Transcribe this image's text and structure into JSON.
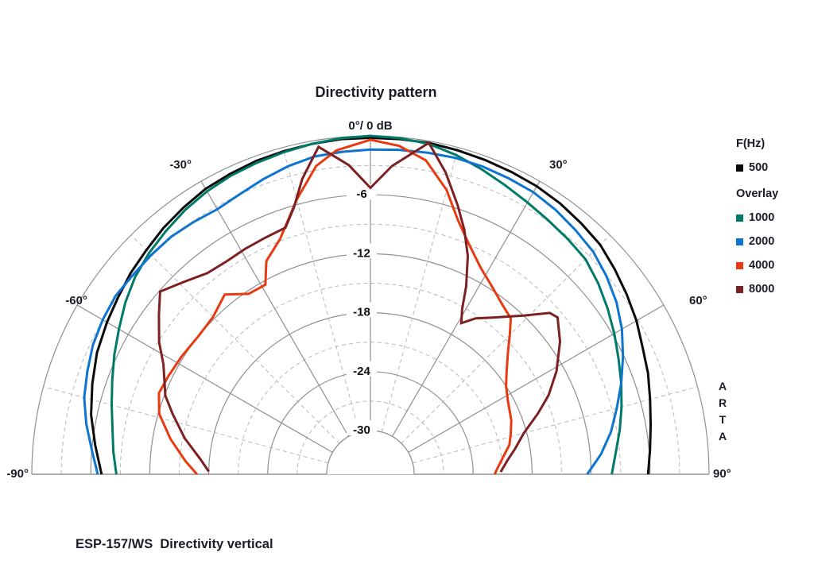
{
  "title": "Directivity pattern",
  "caption": "ESP-157/WS  Directivity vertical",
  "watermark": "ARTA",
  "legend": {
    "group1_heading": "F(Hz)",
    "group2_heading": "Overlay",
    "entries": [
      {
        "label": "500",
        "color": "#0a0a0a",
        "group": 1
      },
      {
        "label": "1000",
        "color": "#007a68",
        "group": 2
      },
      {
        "label": "2000",
        "color": "#0d74cf",
        "group": 2
      },
      {
        "label": "4000",
        "color": "#e83a10",
        "group": 2
      },
      {
        "label": "8000",
        "color": "#7c2022",
        "group": 2
      }
    ]
  },
  "chart_data": {
    "type": "line",
    "subtype": "polar-directivity-half",
    "apex_label": "0°/ 0 dB",
    "angle_ticks_solid": [
      0,
      -30,
      30,
      -60,
      60,
      -90,
      90
    ],
    "angle_ticks_dashed": [
      -15,
      15,
      -45,
      45,
      -75,
      75
    ],
    "angle_labels": [
      {
        "angle": 0,
        "text": "0°/ 0 dB"
      },
      {
        "angle": -30,
        "text": "-30°"
      },
      {
        "angle": 30,
        "text": "30°"
      },
      {
        "angle": -60,
        "text": "-60°"
      },
      {
        "angle": 60,
        "text": "60°"
      },
      {
        "angle": -90,
        "text": "-90°"
      },
      {
        "angle": 90,
        "text": "90°"
      }
    ],
    "db_rings_solid": [
      0,
      -6,
      -12,
      -18,
      -24,
      -30
    ],
    "db_rings_dashed": [
      -3,
      -9,
      -15,
      -21,
      -27
    ],
    "db_ring_labels": [
      {
        "db": -6,
        "text": "-6"
      },
      {
        "db": -12,
        "text": "-12"
      },
      {
        "db": -18,
        "text": "-18"
      },
      {
        "db": -24,
        "text": "-24"
      },
      {
        "db": -30,
        "text": "-30"
      }
    ],
    "db_min": -30,
    "grid_colors": {
      "solid": "#8f8f8f",
      "dashed": "#b8b8b8"
    },
    "series": [
      {
        "name": "500",
        "color": "#0a0a0a",
        "points": [
          [
            -90,
            -7.1
          ],
          [
            -84,
            -6.3
          ],
          [
            -78,
            -5.4
          ],
          [
            -72,
            -4.7
          ],
          [
            -66,
            -4.0
          ],
          [
            -60,
            -3.5
          ],
          [
            -55,
            -3.1
          ],
          [
            -50,
            -2.6
          ],
          [
            -45,
            -2.2
          ],
          [
            -40,
            -1.7
          ],
          [
            -35,
            -1.3
          ],
          [
            -30,
            -0.9
          ],
          [
            -25,
            -0.7
          ],
          [
            -20,
            -0.5
          ],
          [
            -15,
            -0.4
          ],
          [
            -10,
            -0.3
          ],
          [
            -5,
            -0.2
          ],
          [
            0,
            -0.2
          ],
          [
            5,
            -0.2
          ],
          [
            10,
            -0.2
          ],
          [
            15,
            -0.3
          ],
          [
            20,
            -0.4
          ],
          [
            25,
            -0.5
          ],
          [
            30,
            -0.6
          ],
          [
            35,
            -0.8
          ],
          [
            40,
            -1.1
          ],
          [
            45,
            -1.4
          ],
          [
            50,
            -2.0
          ],
          [
            55,
            -2.6
          ],
          [
            60,
            -3.2
          ],
          [
            65,
            -3.9
          ],
          [
            70,
            -4.4
          ],
          [
            75,
            -5.0
          ],
          [
            80,
            -5.5
          ],
          [
            85,
            -5.9
          ],
          [
            90,
            -6.2
          ]
        ]
      },
      {
        "name": "1000",
        "color": "#007a68",
        "points": [
          [
            -90,
            -8.6
          ],
          [
            -85,
            -8.2
          ],
          [
            -80,
            -7.8
          ],
          [
            -75,
            -7.2
          ],
          [
            -70,
            -6.5
          ],
          [
            -65,
            -5.7
          ],
          [
            -60,
            -4.9
          ],
          [
            -55,
            -4.0
          ],
          [
            -50,
            -3.2
          ],
          [
            -45,
            -2.6
          ],
          [
            -40,
            -2.1
          ],
          [
            -35,
            -1.6
          ],
          [
            -30,
            -1.2
          ],
          [
            -25,
            -0.9
          ],
          [
            -20,
            -0.7
          ],
          [
            -15,
            -0.5
          ],
          [
            -10,
            -0.3
          ],
          [
            -5,
            -0.1
          ],
          [
            0,
            0
          ],
          [
            5,
            -0.1
          ],
          [
            10,
            -0.3
          ],
          [
            15,
            -0.8
          ],
          [
            20,
            -1.4
          ],
          [
            25,
            -2.0
          ],
          [
            30,
            -2.5
          ],
          [
            35,
            -2.9
          ],
          [
            40,
            -3.2
          ],
          [
            45,
            -3.5
          ],
          [
            50,
            -4.2
          ],
          [
            55,
            -5.0
          ],
          [
            60,
            -5.8
          ],
          [
            65,
            -6.6
          ],
          [
            70,
            -7.3
          ],
          [
            75,
            -8.0
          ],
          [
            80,
            -8.7
          ],
          [
            85,
            -9.4
          ],
          [
            90,
            -9.9
          ]
        ]
      },
      {
        "name": "2000",
        "color": "#0d74cf",
        "points": [
          [
            -90,
            -6.7
          ],
          [
            -85,
            -6.0
          ],
          [
            -80,
            -5.1
          ],
          [
            -75,
            -4.3
          ],
          [
            -70,
            -3.8
          ],
          [
            -65,
            -3.3
          ],
          [
            -60,
            -3.0
          ],
          [
            -55,
            -2.8
          ],
          [
            -50,
            -2.9
          ],
          [
            -45,
            -2.9
          ],
          [
            -40,
            -2.9
          ],
          [
            -35,
            -3.1
          ],
          [
            -30,
            -3.3
          ],
          [
            -25,
            -3.0
          ],
          [
            -20,
            -2.5
          ],
          [
            -15,
            -2.0
          ],
          [
            -10,
            -1.6
          ],
          [
            -5,
            -1.5
          ],
          [
            0,
            -1.4
          ],
          [
            5,
            -1.3
          ],
          [
            10,
            -1.2
          ],
          [
            15,
            -1.1
          ],
          [
            20,
            -1.1
          ],
          [
            25,
            -1.2
          ],
          [
            30,
            -1.3
          ],
          [
            35,
            -1.6
          ],
          [
            40,
            -2.0
          ],
          [
            45,
            -2.4
          ],
          [
            50,
            -3.1
          ],
          [
            55,
            -3.9
          ],
          [
            60,
            -4.9
          ],
          [
            65,
            -6.1
          ],
          [
            70,
            -7.3
          ],
          [
            75,
            -8.5
          ],
          [
            80,
            -9.6
          ],
          [
            85,
            -10.9
          ],
          [
            90,
            -12.4
          ]
        ]
      },
      {
        "name": "4000",
        "color": "#e83a10",
        "points": [
          [
            -90,
            -16.8
          ],
          [
            -86,
            -15.6
          ],
          [
            -80,
            -13.8
          ],
          [
            -74,
            -12.1
          ],
          [
            -69,
            -11.4
          ],
          [
            -64,
            -11.6
          ],
          [
            -58,
            -11.8
          ],
          [
            -51,
            -12.0
          ],
          [
            -45,
            -11.8
          ],
          [
            -39,
            -10.9
          ],
          [
            -34,
            -12.3
          ],
          [
            -29,
            -12.4
          ],
          [
            -26,
            -10.3
          ],
          [
            -21,
            -8.8
          ],
          [
            -15,
            -5.5
          ],
          [
            -10,
            -2.6
          ],
          [
            -6,
            -1.3
          ],
          [
            0,
            -0.4
          ],
          [
            5,
            -0.9
          ],
          [
            10,
            -2.0
          ],
          [
            15,
            -4.5
          ],
          [
            19,
            -7.1
          ],
          [
            23,
            -8.9
          ],
          [
            28,
            -10.6
          ],
          [
            33,
            -11.7
          ],
          [
            38,
            -12.6
          ],
          [
            42,
            -13.1
          ],
          [
            45,
            -14.4
          ],
          [
            48,
            -15.6
          ],
          [
            53,
            -17.1
          ],
          [
            57,
            -18.0
          ],
          [
            62,
            -18.6
          ],
          [
            69,
            -19.1
          ],
          [
            74,
            -19.6
          ],
          [
            78,
            -20.0
          ],
          [
            83,
            -20.9
          ],
          [
            88,
            -21.6
          ],
          [
            90,
            -21.8
          ]
        ]
      },
      {
        "name": "8000",
        "color": "#7c2022",
        "points": [
          [
            -89,
            -18.0
          ],
          [
            -85,
            -17.1
          ],
          [
            -79,
            -15.2
          ],
          [
            -73,
            -13.4
          ],
          [
            -69,
            -12.1
          ],
          [
            -62,
            -10.6
          ],
          [
            -58,
            -9.1
          ],
          [
            -53,
            -7.5
          ],
          [
            -49,
            -6.1
          ],
          [
            -44,
            -7.2
          ],
          [
            -39,
            -8.1
          ],
          [
            -34,
            -8.3
          ],
          [
            -29,
            -8.2
          ],
          [
            -24,
            -8.1
          ],
          [
            -19,
            -7.9
          ],
          [
            -16,
            -6.2
          ],
          [
            -13,
            -3.6
          ],
          [
            -9,
            -0.7
          ],
          [
            -4,
            -2.9
          ],
          [
            0,
            -5.3
          ],
          [
            4,
            -3.0
          ],
          [
            10,
            -0.2
          ],
          [
            14,
            -2.8
          ],
          [
            18,
            -5.7
          ],
          [
            21,
            -7.8
          ],
          [
            24,
            -10.1
          ],
          [
            27,
            -13.0
          ],
          [
            29,
            -15.2
          ],
          [
            31,
            -16.5
          ],
          [
            34,
            -15.3
          ],
          [
            38,
            -14.2
          ],
          [
            44,
            -12.0
          ],
          [
            48,
            -9.9
          ],
          [
            50,
            -9.6
          ],
          [
            55,
            -10.9
          ],
          [
            61,
            -12.8
          ],
          [
            66,
            -14.6
          ],
          [
            70,
            -16.3
          ],
          [
            75,
            -18.3
          ],
          [
            80,
            -19.5
          ],
          [
            84,
            -20.4
          ],
          [
            89,
            -21.2
          ]
        ]
      }
    ]
  }
}
